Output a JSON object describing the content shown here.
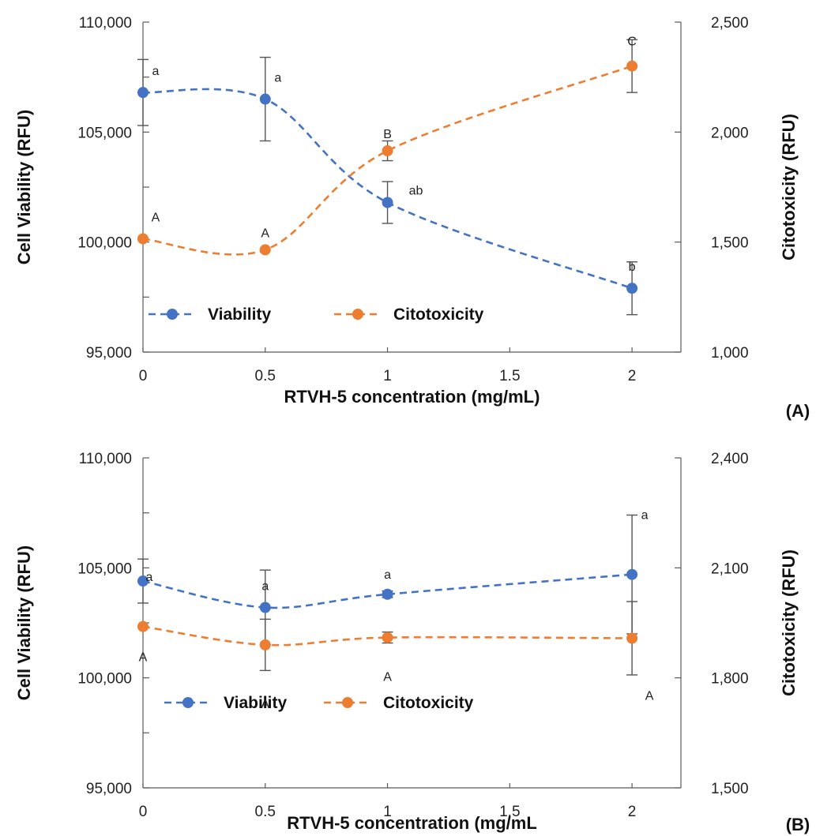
{
  "chart_data": [
    {
      "type": "line",
      "panel_label": "(A)",
      "xlabel": "RTVH-5 concentration (mg/mL)",
      "ylabel_left": "Cell Viability (RFU)",
      "ylabel_right": "Citotoxicity (RFU)",
      "xlim": [
        0,
        2.2
      ],
      "x_ticks": [
        0,
        0.5,
        1,
        1.5,
        2
      ],
      "x_tick_labels": [
        "0",
        "0.5",
        "1",
        "1.5",
        "2"
      ],
      "ylim_left": [
        95000,
        110000
      ],
      "y_ticks_left": [
        95000,
        100000,
        105000,
        110000
      ],
      "y_tick_labels_left": [
        "95,000",
        "100,000",
        "105,000",
        "110,000"
      ],
      "ylim_right": [
        1000,
        2500
      ],
      "y_ticks_right": [
        1000,
        1500,
        2000,
        2500
      ],
      "y_tick_labels_right": [
        "1,000",
        "1,500",
        "2,000",
        "2,500"
      ],
      "legend": "bottom-left",
      "series": [
        {
          "name": "Viability",
          "axis": "left",
          "color": "#4472C4",
          "x": [
            0,
            0.5,
            1,
            2
          ],
          "y": [
            106800,
            106500,
            101800,
            97900
          ],
          "error": [
            1500,
            1900,
            950,
            1200
          ],
          "labels": [
            "a",
            "a",
            "ab",
            "b"
          ]
        },
        {
          "name": "Citotoxicity",
          "axis": "right",
          "color": "#ED7D31",
          "x": [
            0,
            0.5,
            1,
            2
          ],
          "y": [
            1515,
            1465,
            1915,
            2300
          ],
          "error": [
            0,
            0,
            45,
            120
          ],
          "labels": [
            "A",
            "A",
            "B",
            "C"
          ]
        }
      ]
    },
    {
      "type": "line",
      "panel_label": "(B)",
      "xlabel": "RTVH-5 concentration (mg/mL",
      "ylabel_left": "Cell Viability (RFU)",
      "ylabel_right": "Citotoxicity  (RFU)",
      "xlim": [
        0,
        2.2
      ],
      "x_ticks": [
        0,
        0.5,
        1,
        1.5,
        2
      ],
      "x_tick_labels": [
        "0",
        "0.5",
        "1",
        "1.5",
        "2"
      ],
      "ylim_left": [
        95000,
        110000
      ],
      "y_ticks_left": [
        95000,
        100000,
        105000,
        110000
      ],
      "y_tick_labels_left": [
        "95,000",
        "100,000",
        "105,000",
        "110,000"
      ],
      "ylim_right": [
        1500,
        2400
      ],
      "y_ticks_right": [
        1500,
        1800,
        2100,
        2400
      ],
      "y_tick_labels_right": [
        "1,500",
        "1,800",
        "2,100",
        "2,400"
      ],
      "legend": "bottom-left",
      "series": [
        {
          "name": "Viability",
          "axis": "left",
          "color": "#4472C4",
          "x": [
            0,
            0.5,
            1,
            2
          ],
          "y": [
            104400,
            103200,
            103800,
            104700
          ],
          "error": [
            1000,
            1700,
            150,
            2700
          ],
          "labels": [
            "a",
            "a",
            "a",
            "a"
          ]
        },
        {
          "name": "Citotoxicity",
          "axis": "right",
          "color": "#ED7D31",
          "x": [
            0,
            0.5,
            1,
            2
          ],
          "y": [
            1940,
            1890,
            1910,
            1908
          ],
          "error": [
            0,
            70,
            15,
            100
          ],
          "labels": [
            "A",
            "A",
            "A",
            "A"
          ]
        }
      ]
    }
  ]
}
